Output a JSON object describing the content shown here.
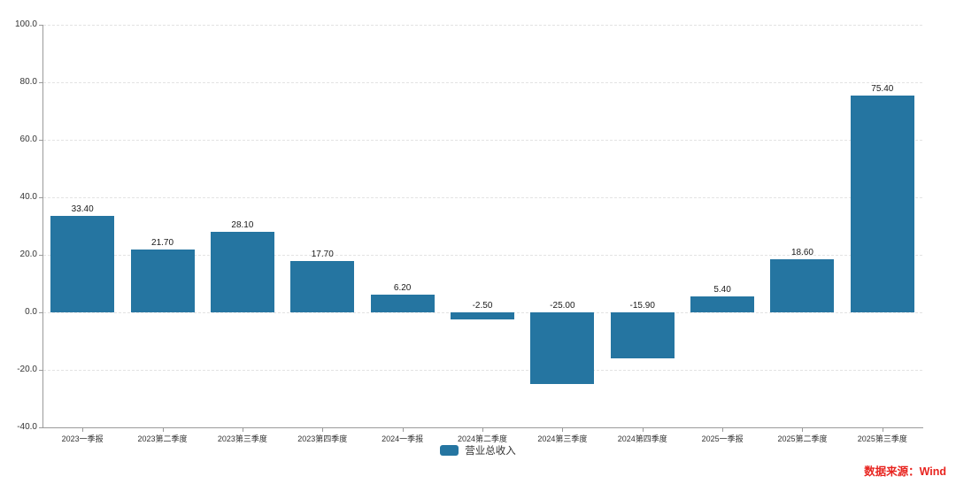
{
  "chart_data": {
    "type": "bar",
    "title": "",
    "categories": [
      "2023一季报",
      "2023第二季度",
      "2023第三季度",
      "2023第四季度",
      "2024一季报",
      "2024第二季度",
      "2024第三季度",
      "2024第四季度",
      "2025一季报",
      "2025第二季度",
      "2025第三季度"
    ],
    "series": [
      {
        "name": "营业总收入",
        "values": [
          33.4,
          21.7,
          28.1,
          17.7,
          6.2,
          -2.5,
          -25.0,
          -15.9,
          5.4,
          18.6,
          75.4
        ]
      }
    ],
    "value_labels": [
      "33.40",
      "21.70",
      "28.10",
      "17.70",
      "6.20",
      "-2.50",
      "-25.00",
      "-15.90",
      "5.40",
      "18.60",
      "75.40"
    ],
    "ylim": [
      -40,
      100
    ],
    "y_ticks": [
      "100.0",
      "80.0",
      "60.0",
      "40.0",
      "20.0",
      "0.0",
      "-20.0",
      "-40.0"
    ],
    "grid": "horizontal-dashed",
    "legend_position": "bottom-center",
    "bar_color": "#2575a1"
  },
  "legend": {
    "label": "营业总收入"
  },
  "source_note": {
    "text": "数据来源：Wind",
    "color": "#e8241f"
  }
}
